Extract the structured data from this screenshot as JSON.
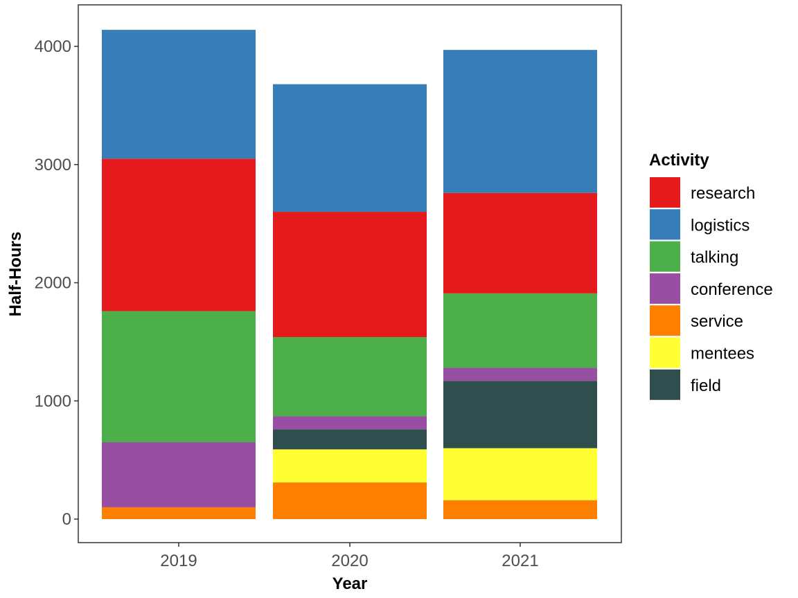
{
  "chart_data": {
    "type": "bar",
    "stacked": true,
    "title": "",
    "xlabel": "Year",
    "ylabel": "Half-Hours",
    "categories": [
      "2019",
      "2020",
      "2021"
    ],
    "ylim": [
      0,
      4200
    ],
    "yticks": [
      0,
      1000,
      2000,
      3000,
      4000
    ],
    "grid": false,
    "legend_title": "Activity",
    "legend_position": "right",
    "stack_order_bottom_to_top": [
      "service",
      "mentees",
      "field",
      "conference",
      "talking",
      "research",
      "logistics"
    ],
    "series": [
      {
        "name": "research",
        "color": "#E41A1C",
        "values": [
          1290,
          1060,
          850
        ]
      },
      {
        "name": "logistics",
        "color": "#377EB8",
        "values": [
          1090,
          1080,
          1210
        ]
      },
      {
        "name": "talking",
        "color": "#4DAF4A",
        "values": [
          1110,
          670,
          630
        ]
      },
      {
        "name": "conference",
        "color": "#984EA3",
        "values": [
          550,
          110,
          110
        ]
      },
      {
        "name": "service",
        "color": "#FF7F00",
        "values": [
          100,
          310,
          160
        ]
      },
      {
        "name": "mentees",
        "color": "#FFFF33",
        "values": [
          0,
          280,
          440
        ]
      },
      {
        "name": "field",
        "color": "#2F4F4F",
        "values": [
          0,
          170,
          570
        ]
      }
    ]
  }
}
